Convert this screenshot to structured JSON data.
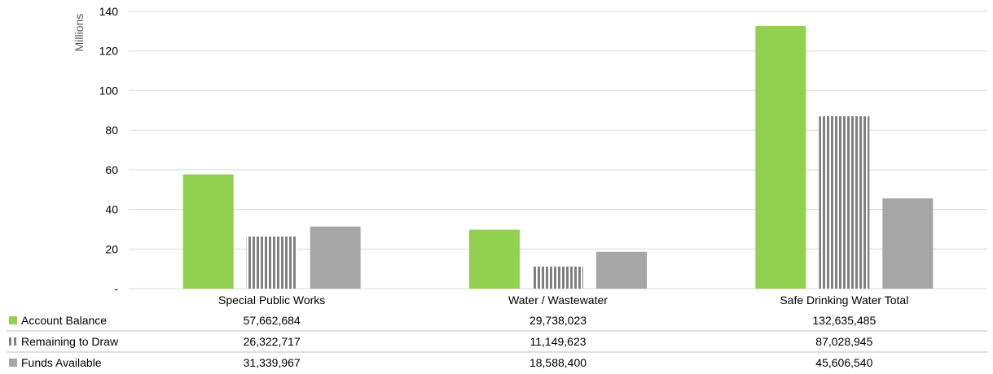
{
  "chart_data": {
    "type": "bar",
    "ylabel": "Millions",
    "ylim": [
      0,
      140
    ],
    "ytick_values": [
      0,
      20,
      40,
      60,
      80,
      100,
      120,
      140
    ],
    "ytick_labels": [
      "-",
      "20",
      "40",
      "60",
      "80",
      "100",
      "120",
      "140"
    ],
    "grid": true,
    "legend": "data-table-below",
    "categories": [
      "Special Public Works",
      "Water / Wastewater",
      "Safe Drinking Water Total"
    ],
    "series": [
      {
        "name": "Account Balance",
        "color": "#92d050",
        "pattern": "solid",
        "values": [
          57.662684,
          29.738023,
          132.635485
        ],
        "value_labels": [
          "57,662,684",
          "29,738,023",
          "132,635,485"
        ]
      },
      {
        "name": "Remaining to Draw",
        "color": "#808080",
        "pattern": "vertical-stripes",
        "values": [
          26.322717,
          11.149623,
          87.028945
        ],
        "value_labels": [
          "26,322,717",
          "11,149,623",
          "87,028,945"
        ]
      },
      {
        "name": "Funds Available",
        "color": "#a6a6a6",
        "pattern": "solid",
        "values": [
          31.339967,
          18.5884,
          45.60654
        ],
        "value_labels": [
          "31,339,967",
          "18,588,400",
          "45,606,540"
        ]
      }
    ]
  }
}
